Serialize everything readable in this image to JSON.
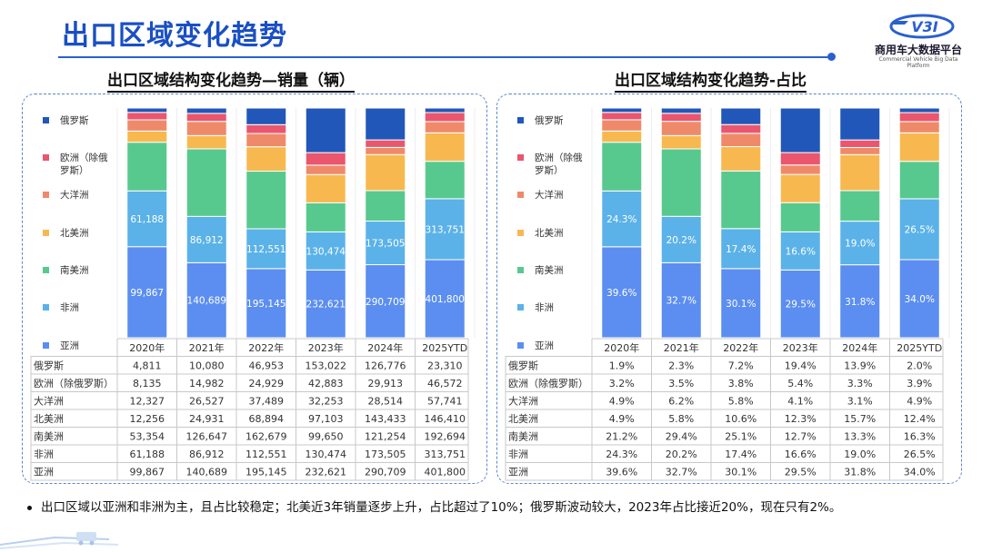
{
  "header": {
    "title": "出口区域变化趋势",
    "logo_name": "商用车大数据平台",
    "logo_sub": "Commercial Vehicle Big Data Platform",
    "logo_mark": "V3I"
  },
  "note": "出口区域以亚洲和非洲为主，且占比较稳定；北美近3年销量逐步上升，占比超过了10%；俄罗斯波动较大，2023年占比接近20%，现在只有2%。",
  "colors": {
    "俄罗斯": "#2157b8",
    "欧洲（除俄罗斯）": "#e9566e",
    "大洋洲": "#ee8a6a",
    "北美洲": "#f8b850",
    "南美洲": "#58c98e",
    "非洲": "#5ab2e8",
    "亚洲": "#5b8ef0"
  },
  "chart_data": [
    {
      "type": "bar",
      "stacked": true,
      "title": "出口区域结构变化趋势—销量（辆）",
      "categories": [
        "2020年",
        "2021年",
        "2022年",
        "2023年",
        "2024年",
        "2025YTD"
      ],
      "series": [
        {
          "name": "俄罗斯",
          "legend": "俄罗斯",
          "values": [
            4811,
            10080,
            46953,
            153022,
            126776,
            23310
          ],
          "labels": [
            "4,811",
            "10,080",
            "46,953",
            "153,022",
            "126,776",
            "23,310"
          ]
        },
        {
          "name": "欧洲（除俄罗斯）",
          "legend": "欧洲（除俄罗斯）",
          "values": [
            8135,
            14982,
            24929,
            42883,
            29913,
            46572
          ],
          "labels": [
            "8,135",
            "14,982",
            "24,929",
            "42,883",
            "29,913",
            "46,572"
          ]
        },
        {
          "name": "大洋洲",
          "legend": "大洋洲",
          "values": [
            12327,
            26527,
            37489,
            32253,
            28514,
            57741
          ],
          "labels": [
            "12,327",
            "26,527",
            "37,489",
            "32,253",
            "28,514",
            "57,741"
          ]
        },
        {
          "name": "北美洲",
          "legend": "北美洲",
          "values": [
            12256,
            24931,
            68894,
            97103,
            143433,
            146410
          ],
          "labels": [
            "12,256",
            "24,931",
            "68,894",
            "97,103",
            "143,433",
            "146,410"
          ]
        },
        {
          "name": "南美洲",
          "legend": "南美洲",
          "values": [
            53354,
            126647,
            162679,
            99650,
            121254,
            192694
          ],
          "labels": [
            "53,354",
            "126,647",
            "162,679",
            "99,650",
            "121,254",
            "192,694"
          ]
        },
        {
          "name": "非洲",
          "legend": "非洲",
          "values": [
            61188,
            86912,
            112551,
            130474,
            173505,
            313751
          ],
          "labels": [
            "61,188",
            "86,912",
            "112,551",
            "130,474",
            "173,505",
            "313,751"
          ]
        },
        {
          "name": "亚洲",
          "legend": "亚洲",
          "values": [
            99867,
            140689,
            195145,
            232621,
            290709,
            401800
          ],
          "labels": [
            "99,867",
            "140,689",
            "195,145",
            "232,621",
            "290,709",
            "401,800"
          ]
        }
      ],
      "bar_labels": [
        "非洲",
        "亚洲"
      ]
    },
    {
      "type": "bar",
      "stacked": true,
      "percent": true,
      "title": "出口区域结构变化趋势-占比",
      "categories": [
        "2020年",
        "2021年",
        "2022年",
        "2023年",
        "2024年",
        "2025YTD"
      ],
      "series": [
        {
          "name": "俄罗斯",
          "legend": "俄罗斯",
          "values": [
            1.9,
            2.3,
            7.2,
            19.4,
            13.9,
            2.0
          ],
          "labels": [
            "1.9%",
            "2.3%",
            "7.2%",
            "19.4%",
            "13.9%",
            "2.0%"
          ]
        },
        {
          "name": "欧洲（除俄罗斯）",
          "legend": "欧洲（除俄罗斯）",
          "values": [
            3.2,
            3.5,
            3.8,
            5.4,
            3.3,
            3.9
          ],
          "labels": [
            "3.2%",
            "3.5%",
            "3.8%",
            "5.4%",
            "3.3%",
            "3.9%"
          ]
        },
        {
          "name": "大洋洲",
          "legend": "大洋洲",
          "values": [
            4.9,
            6.2,
            5.8,
            4.1,
            3.1,
            4.9
          ],
          "labels": [
            "4.9%",
            "6.2%",
            "5.8%",
            "4.1%",
            "3.1%",
            "4.9%"
          ]
        },
        {
          "name": "北美洲",
          "legend": "北美洲",
          "values": [
            4.9,
            5.8,
            10.6,
            12.3,
            15.7,
            12.4
          ],
          "labels": [
            "4.9%",
            "5.8%",
            "10.6%",
            "12.3%",
            "15.7%",
            "12.4%"
          ]
        },
        {
          "name": "南美洲",
          "legend": "南美洲",
          "values": [
            21.2,
            29.4,
            25.1,
            12.7,
            13.3,
            16.3
          ],
          "labels": [
            "21.2%",
            "29.4%",
            "25.1%",
            "12.7%",
            "13.3%",
            "16.3%"
          ]
        },
        {
          "name": "非洲",
          "legend": "非洲",
          "values": [
            24.3,
            20.2,
            17.4,
            16.6,
            19.0,
            26.5
          ],
          "labels": [
            "24.3%",
            "20.2%",
            "17.4%",
            "16.6%",
            "19.0%",
            "26.5%"
          ]
        },
        {
          "name": "亚洲",
          "legend": "亚洲",
          "values": [
            39.6,
            32.7,
            30.1,
            29.5,
            31.8,
            34.0
          ],
          "labels": [
            "39.6%",
            "32.7%",
            "30.1%",
            "29.5%",
            "31.8%",
            "34.0%"
          ]
        }
      ],
      "bar_labels": [
        "非洲",
        "亚洲"
      ]
    }
  ]
}
